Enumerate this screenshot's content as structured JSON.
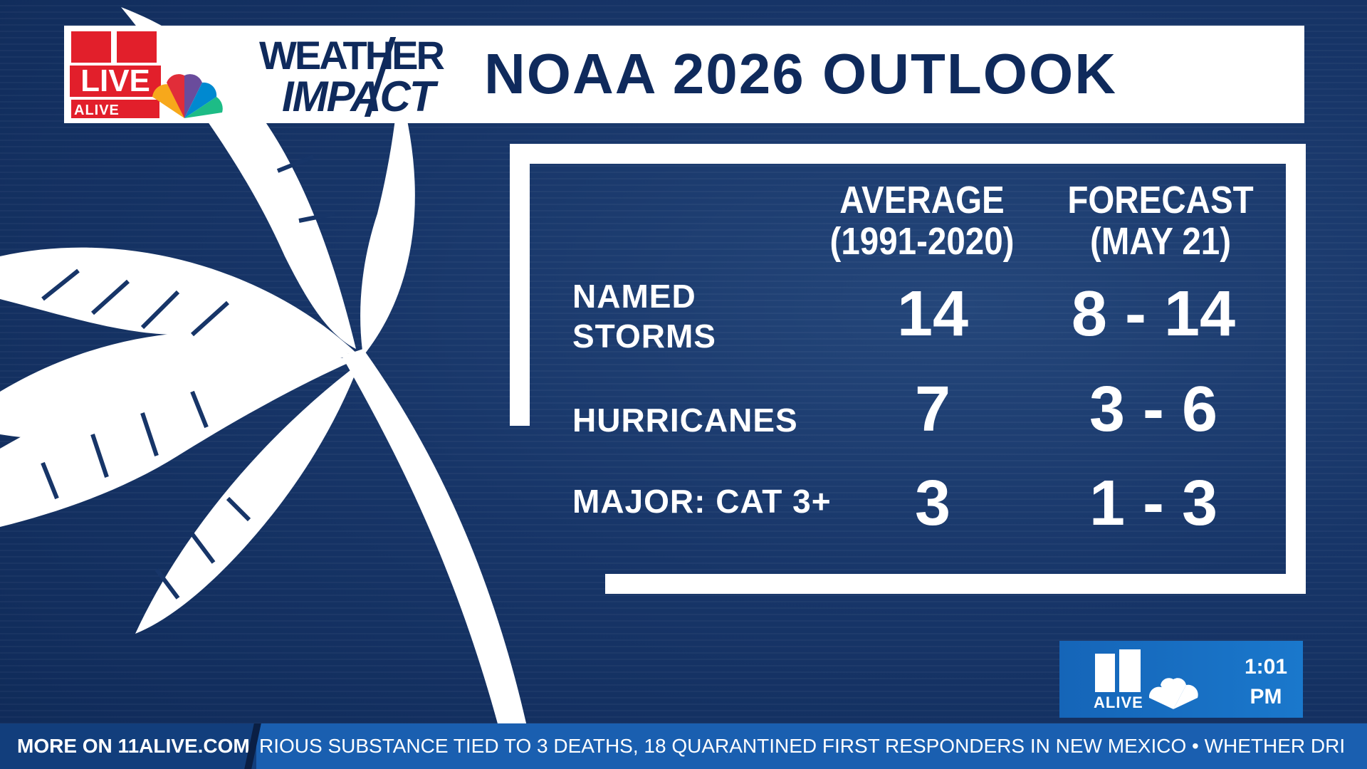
{
  "header": {
    "live_logo_text": "LIVE",
    "live_logo_sub": "ALIVE",
    "brand_line1": "WEATHER",
    "brand_line2": "IMPACT",
    "title": "NOAA 2026 OUTLOOK"
  },
  "table": {
    "columns": [
      {
        "line1": "AVERAGE",
        "line2": "(1991-2020)"
      },
      {
        "line1": "FORECAST",
        "line2": "(MAY 21)"
      }
    ],
    "rows": [
      {
        "label_line1": "NAMED",
        "label_line2": "STORMS",
        "average": "14",
        "forecast": "8 - 14"
      },
      {
        "label_line1": "HURRICANES",
        "label_line2": "",
        "average": "7",
        "forecast": "3 - 6"
      },
      {
        "label_line1": "MAJOR: CAT 3+",
        "label_line2": "",
        "average": "3",
        "forecast": "1 - 3"
      }
    ]
  },
  "bug": {
    "station": "ALIVE",
    "time_line1": "1:01",
    "time_line2": "PM"
  },
  "ticker": {
    "label": "MORE ON 11ALIVE.COM",
    "text": "RIOUS SUBSTANCE TIED TO 3 DEATHS, 18 QUARANTINED FIRST RESPONDERS IN NEW MEXICO  •  WHETHER DRI"
  },
  "colors": {
    "navy": "#0f2a5c",
    "background": "#173568",
    "live_red": "#e21f2b",
    "ticker_blue": "#1a5fb0"
  },
  "icons": [
    "palm-tree-icon",
    "peacock-icon",
    "eleven-alive-logo-icon"
  ]
}
